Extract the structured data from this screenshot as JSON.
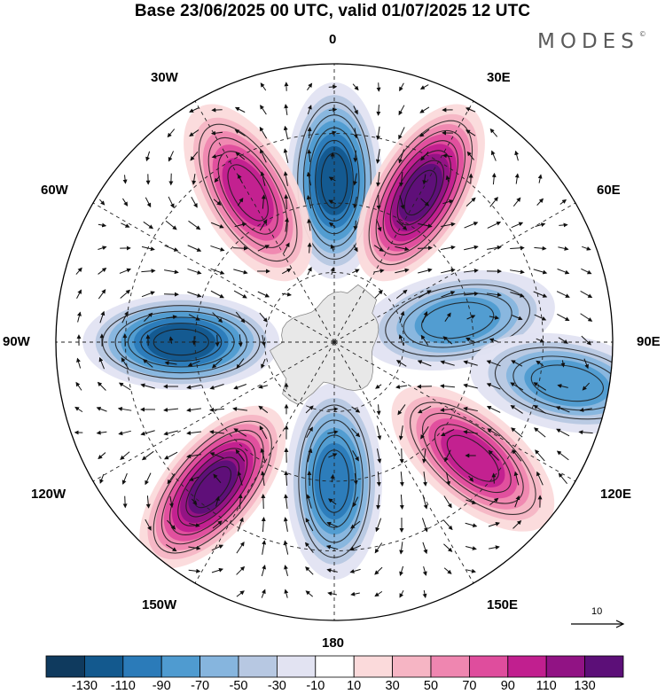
{
  "title": "Base 23/06/2025 00 UTC, valid 01/07/2025 12 UTC",
  "brand": "MODES",
  "brand_mark": "©",
  "longitude_labels": {
    "top": "0",
    "bottom": "180",
    "left": "90W",
    "right": "90E",
    "nw30": "30W",
    "nw60": "60W",
    "sw120": "120W",
    "sw150": "150W",
    "ne30": "30E",
    "ne60": "60E",
    "se120": "120E",
    "se150": "150E"
  },
  "reference_vector_label": "10",
  "colorbar": {
    "ticks": [
      "-130",
      "-110",
      "-90",
      "-70",
      "-50",
      "-30",
      "-10",
      "10",
      "30",
      "50",
      "70",
      "90",
      "110",
      "130"
    ],
    "colors": [
      "#0f3a5e",
      "#13598e",
      "#2b7bb9",
      "#4f9bd0",
      "#86b5de",
      "#b7c8e2",
      "#e2e3f2",
      "#ffffff",
      "#fbdadb",
      "#f6b5c4",
      "#ef86b0",
      "#df4d9d",
      "#c11f8f",
      "#911384",
      "#5c0f78"
    ]
  },
  "projection": "south-polar-stereographic",
  "anomaly_centers": [
    {
      "lon_deg": 0,
      "lat_frac": 0.58,
      "value": -110
    },
    {
      "lon_deg": 30,
      "lat_frac": 0.62,
      "value": 115
    },
    {
      "lon_deg": -30,
      "lat_frac": 0.62,
      "value": 80
    },
    {
      "lon_deg": -90,
      "lat_frac": 0.55,
      "value": -110
    },
    {
      "lon_deg": -140,
      "lat_frac": 0.68,
      "value": 115
    },
    {
      "lon_deg": 180,
      "lat_frac": 0.5,
      "value": -90
    },
    {
      "lon_deg": 80,
      "lat_frac": 0.45,
      "value": -60
    },
    {
      "lon_deg": 100,
      "lat_frac": 0.85,
      "value": -70
    },
    {
      "lon_deg": 130,
      "lat_frac": 0.65,
      "value": 90
    }
  ]
}
